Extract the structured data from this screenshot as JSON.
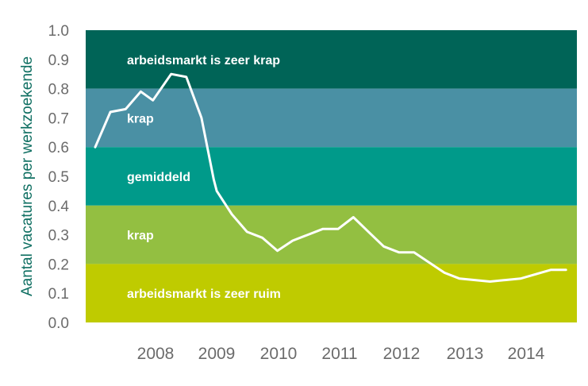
{
  "chart_data": {
    "type": "line",
    "ylabel": "Aantal vacatures per werkzoekende",
    "ylim": [
      0,
      1
    ],
    "y_ticks": [
      "1.0",
      "0.9",
      "0.8",
      "0.7",
      "0.6",
      "0.5",
      "0.4",
      "0.3",
      "0.2",
      "0.1",
      "0.0"
    ],
    "x_ticks": [
      "2008",
      "2009",
      "2010",
      "2011",
      "2012",
      "2013",
      "2014"
    ],
    "xlim": [
      2007,
      2015
    ],
    "x_tick_positions": [
      2008,
      2009,
      2010,
      2011,
      2012,
      2013,
      2014
    ],
    "bands": [
      {
        "label": "arbeidsmarkt is zeer krap",
        "from": 0.8,
        "to": 1.0,
        "color": "#006457"
      },
      {
        "label": "krap",
        "from": 0.6,
        "to": 0.8,
        "color": "#4a90a4"
      },
      {
        "label": "gemiddeld",
        "from": 0.4,
        "to": 0.6,
        "color": "#009a8a"
      },
      {
        "label": "krap",
        "from": 0.2,
        "to": 0.4,
        "color": "#93bf41"
      },
      {
        "label": "arbeidsmarkt is zeer ruim",
        "from": 0.0,
        "to": 0.2,
        "color": "#bfcb00"
      }
    ],
    "line_color": "#ffffff",
    "series": [
      {
        "x": [
          2007.0,
          2007.25,
          2007.5,
          2007.75,
          2007.95,
          2008.25,
          2008.5,
          2008.75,
          2008.95,
          2009.0,
          2009.25,
          2009.5,
          2009.75,
          2010.0,
          2010.25,
          2010.5,
          2010.75,
          2011.0,
          2011.25,
          2011.5,
          2011.75,
          2012.0,
          2012.25,
          2012.5,
          2012.75,
          2013.0,
          2013.25,
          2013.5,
          2013.75,
          2014.0,
          2014.25,
          2014.5,
          2014.75
        ],
        "y": [
          0.6,
          0.72,
          0.73,
          0.79,
          0.76,
          0.85,
          0.84,
          0.7,
          0.49,
          0.45,
          0.37,
          0.31,
          0.29,
          0.245,
          0.28,
          0.3,
          0.32,
          0.32,
          0.36,
          0.31,
          0.26,
          0.24,
          0.24,
          0.205,
          0.17,
          0.15,
          0.145,
          0.14,
          0.145,
          0.15,
          0.165,
          0.18,
          0.18
        ]
      }
    ]
  }
}
